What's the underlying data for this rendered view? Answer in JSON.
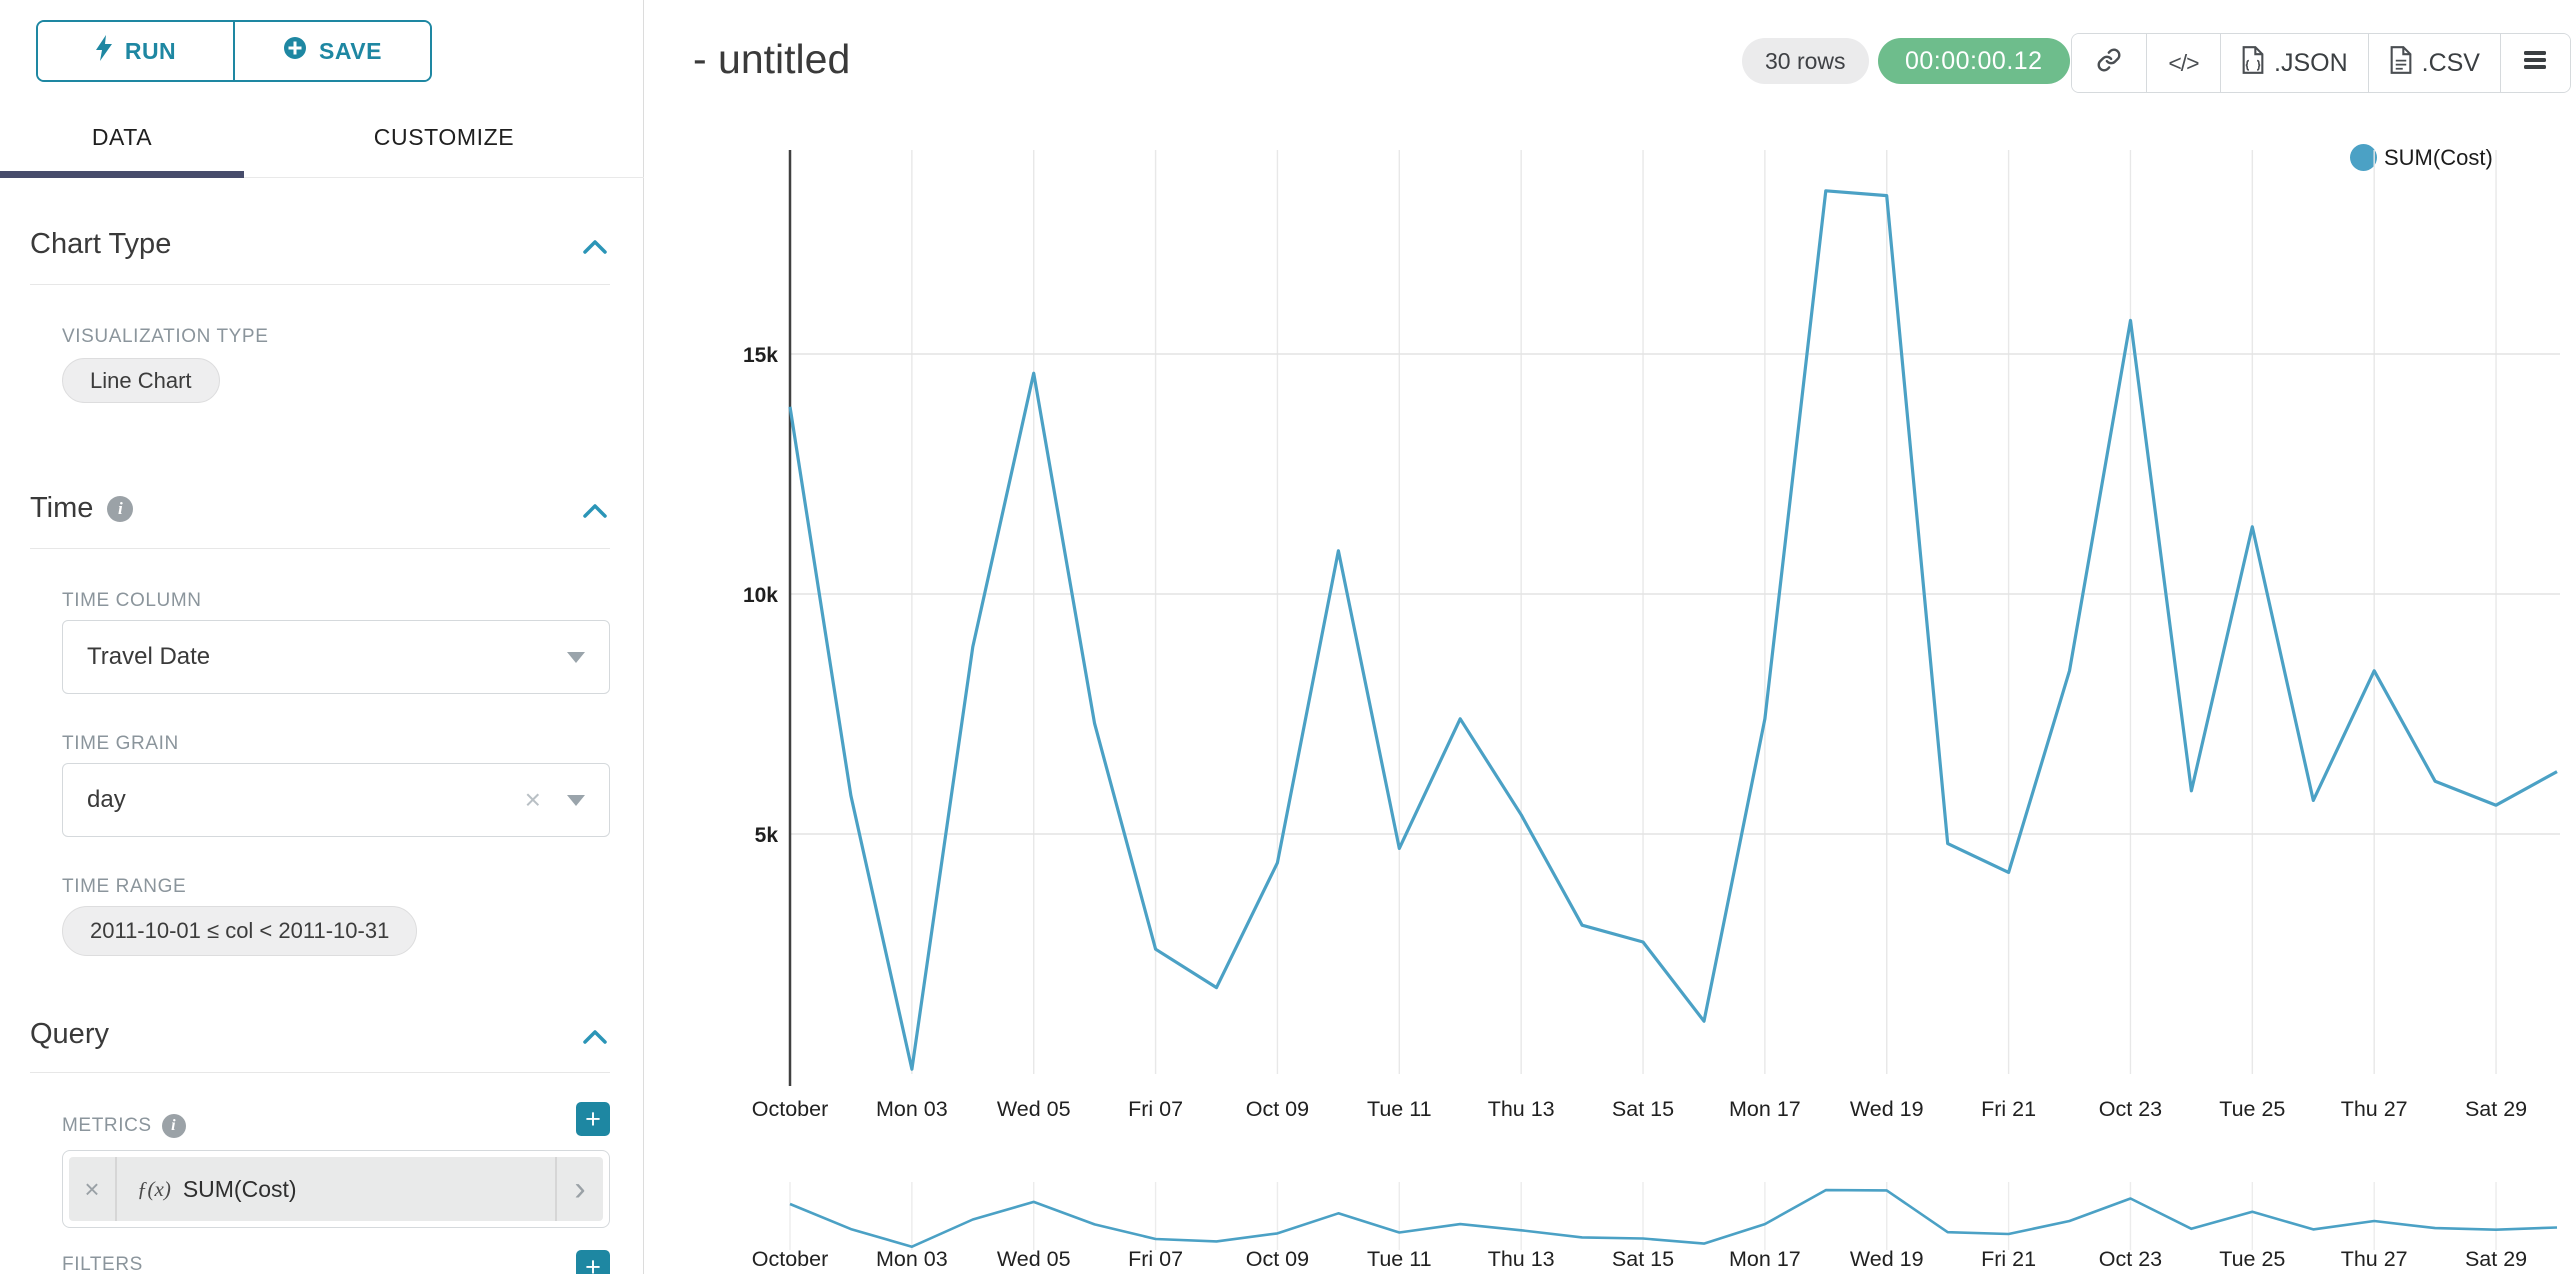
{
  "colors": {
    "accent_teal": "#1e87a2",
    "series_line": "#4ba1c5",
    "active_tab_underline": "#474c6b",
    "timer_green": "#6ebd8c"
  },
  "sidebar": {
    "run_button": "RUN",
    "save_button": "SAVE",
    "tabs": [
      {
        "label": "DATA",
        "active": true
      },
      {
        "label": "CUSTOMIZE",
        "active": false
      }
    ],
    "chart_type_section": {
      "title": "Chart Type",
      "visualization_type_label": "VISUALIZATION TYPE",
      "visualization_type_value": "Line Chart"
    },
    "time_section": {
      "title": "Time",
      "time_column_label": "TIME COLUMN",
      "time_column_value": "Travel Date",
      "time_grain_label": "TIME GRAIN",
      "time_grain_value": "day",
      "time_range_label": "TIME RANGE",
      "time_range_value": "2011-10-01 ≤ col < 2011-10-31"
    },
    "query_section": {
      "title": "Query",
      "metrics_label": "METRICS",
      "metric_function_badge": "ƒ(x)",
      "metric_name": "SUM(Cost)",
      "filters_label": "FILTERS"
    }
  },
  "header": {
    "chart_title": "- untitled",
    "rows_badge": "30 rows",
    "query_timer": "00:00:00.12",
    "json_export_label": ".JSON",
    "csv_export_label": ".CSV"
  },
  "legend": {
    "series_label": "SUM(Cost)"
  },
  "chart_data": {
    "type": "line",
    "title": "- untitled",
    "xlabel": "",
    "ylabel": "",
    "ylim": [
      0,
      19250
    ],
    "grid": true,
    "legend_position": "top-right",
    "context_chart": true,
    "x": [
      "2011-10-01",
      "2011-10-02",
      "2011-10-03",
      "2011-10-04",
      "2011-10-05",
      "2011-10-06",
      "2011-10-07",
      "2011-10-08",
      "2011-10-09",
      "2011-10-10",
      "2011-10-11",
      "2011-10-12",
      "2011-10-13",
      "2011-10-14",
      "2011-10-15",
      "2011-10-16",
      "2011-10-17",
      "2011-10-18",
      "2011-10-19",
      "2011-10-20",
      "2011-10-21",
      "2011-10-22",
      "2011-10-23",
      "2011-10-24",
      "2011-10-25",
      "2011-10-26",
      "2011-10-27",
      "2011-10-28",
      "2011-10-29",
      "2011-10-30"
    ],
    "series": [
      {
        "name": "SUM(Cost)",
        "color": "#4ba1c5",
        "values": [
          13900,
          5800,
          100,
          8900,
          14600,
          7300,
          2600,
          1800,
          4400,
          10900,
          4700,
          7400,
          5400,
          3100,
          2750,
          1100,
          7400,
          18400,
          18300,
          4800,
          4200,
          8400,
          15700,
          5900,
          11400,
          5700,
          8400,
          6100,
          5600,
          6300
        ]
      }
    ],
    "y_ticks": [
      {
        "value": 5000,
        "label": "5k"
      },
      {
        "value": 10000,
        "label": "10k"
      },
      {
        "value": 15000,
        "label": "15k"
      }
    ],
    "x_ticks": [
      {
        "index": 0,
        "label": "October"
      },
      {
        "index": 2,
        "label": "Mon 03"
      },
      {
        "index": 4,
        "label": "Wed 05"
      },
      {
        "index": 6,
        "label": "Fri 07"
      },
      {
        "index": 8,
        "label": "Oct 09"
      },
      {
        "index": 10,
        "label": "Tue 11"
      },
      {
        "index": 12,
        "label": "Thu 13"
      },
      {
        "index": 14,
        "label": "Sat 15"
      },
      {
        "index": 16,
        "label": "Mon 17"
      },
      {
        "index": 18,
        "label": "Wed 19"
      },
      {
        "index": 20,
        "label": "Fri 21"
      },
      {
        "index": 22,
        "label": "Oct 23"
      },
      {
        "index": 24,
        "label": "Tue 25"
      },
      {
        "index": 26,
        "label": "Thu 27"
      },
      {
        "index": 28,
        "label": "Sat 29"
      }
    ]
  }
}
